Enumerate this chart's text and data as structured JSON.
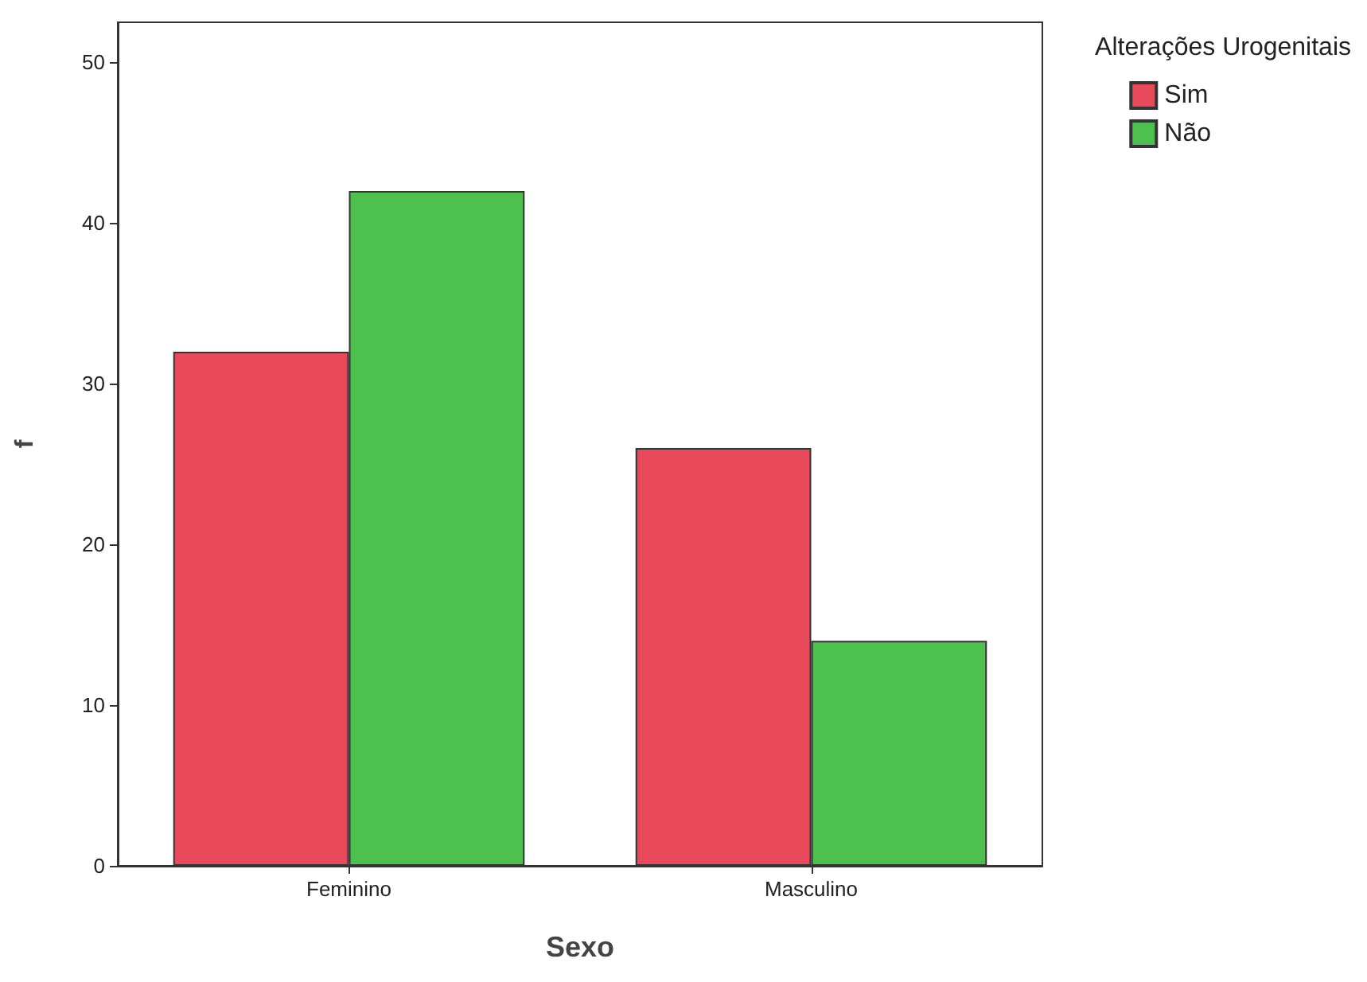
{
  "chart_data": {
    "type": "bar",
    "xlabel": "Sexo",
    "ylabel": "f",
    "legend_title": "Alterações Urogenitais",
    "categories": [
      "Feminino",
      "Masculino"
    ],
    "series": [
      {
        "name": "Sim",
        "color": "#e8495b",
        "values": [
          32,
          26
        ]
      },
      {
        "name": "Não",
        "color": "#4dc04d",
        "values": [
          42,
          14
        ]
      }
    ],
    "ylim": [
      0,
      52.5
    ],
    "yticks": [
      0,
      10,
      20,
      30,
      40,
      50
    ],
    "grid": false,
    "legend": "top right"
  }
}
